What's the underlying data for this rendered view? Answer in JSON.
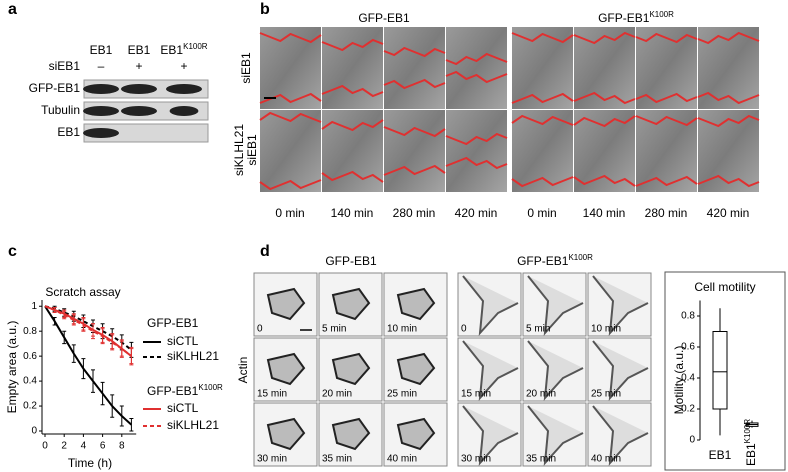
{
  "panels": {
    "a": {
      "label": "a",
      "lanes": [
        "EB1",
        "EB1",
        {
          "base": "EB1",
          "sup": "K100R"
        }
      ],
      "treatment": "siEB1",
      "signs": [
        "–",
        "+",
        "+"
      ],
      "blots": [
        "GFP-EB1",
        "Tubulin",
        "EB1"
      ]
    },
    "b": {
      "label": "b",
      "groups": [
        "GFP-EB1",
        {
          "base": "GFP-EB1",
          "sup": "K100R"
        }
      ],
      "rows": [
        [
          "siEB1"
        ],
        [
          "siKLHL21",
          "siEB1"
        ]
      ],
      "times": [
        [
          "0 min",
          "140 min",
          "280 min",
          "420 min"
        ],
        [
          "0 min",
          "140 min",
          "280 min",
          "420 min"
        ]
      ]
    },
    "c": {
      "label": "c"
    },
    "d": {
      "label": "d",
      "groups": [
        "GFP-EB1",
        {
          "base": "GFP-EB1",
          "sup": "K100R"
        }
      ],
      "stain": "Actin",
      "times": [
        [
          "0",
          "5 min",
          "10 min",
          "15 min",
          "20 min",
          "25 min",
          "30 min",
          "35 min",
          "40 min"
        ],
        [
          "0",
          "5 min",
          "10 min",
          "15 min",
          "20 min",
          "25 min",
          "30 min",
          "35 min",
          "40 min"
        ]
      ]
    }
  },
  "chart_data": [
    {
      "type": "line",
      "title": "Scratch assay",
      "x_label": "Time (h)",
      "y_label": "Empty area (a.u.)",
      "x": [
        0,
        1,
        2,
        3,
        4,
        5,
        6,
        7,
        8,
        9
      ],
      "xlim": [
        0,
        9.5
      ],
      "ylim": [
        0,
        1.05
      ],
      "xticks": [
        0,
        2,
        4,
        6,
        8
      ],
      "yticks": [
        0,
        0.2,
        0.4,
        0.6,
        0.8,
        1
      ],
      "groups": [
        {
          "title": "GFP-EB1",
          "series": [
            {
              "name": "siCTL",
              "color": "#000000",
              "dash": false,
              "values": [
                1,
                0.88,
                0.75,
                0.62,
                0.5,
                0.4,
                0.3,
                0.2,
                0.12,
                0.05
              ],
              "errors": [
                0,
                0.03,
                0.05,
                0.07,
                0.08,
                0.09,
                0.09,
                0.09,
                0.08,
                0.05
              ]
            },
            {
              "name": "siKLHL21",
              "color": "#000000",
              "dash": true,
              "values": [
                1,
                0.98,
                0.95,
                0.92,
                0.88,
                0.84,
                0.8,
                0.76,
                0.71,
                0.65
              ],
              "errors": [
                0,
                0.02,
                0.03,
                0.04,
                0.05,
                0.05,
                0.06,
                0.06,
                0.06,
                0.06
              ]
            }
          ]
        },
        {
          "title": {
            "base": "GFP-EB1",
            "sup": "K100R"
          },
          "series": [
            {
              "name": "siCTL",
              "color": "#e03030",
              "dash": false,
              "values": [
                1,
                0.97,
                0.94,
                0.9,
                0.86,
                0.81,
                0.77,
                0.72,
                0.66,
                0.6
              ],
              "errors": [
                0,
                0.02,
                0.03,
                0.04,
                0.05,
                0.05,
                0.06,
                0.06,
                0.06,
                0.06
              ]
            },
            {
              "name": "siKLHL21",
              "color": "#e03030",
              "dash": true,
              "values": [
                1,
                0.97,
                0.93,
                0.89,
                0.85,
                0.8,
                0.76,
                0.71,
                0.66,
                0.6
              ],
              "errors": [
                0,
                0.02,
                0.03,
                0.04,
                0.05,
                0.06,
                0.06,
                0.06,
                0.07,
                0.07
              ]
            }
          ]
        }
      ]
    },
    {
      "type": "box",
      "title": "Cell motility",
      "y_label": "Motility (a.u.)",
      "categories": [
        "EB1",
        {
          "base": "EB1",
          "sup": "K100R"
        }
      ],
      "ylim": [
        0,
        0.9
      ],
      "yticks": [
        0,
        0.2,
        0.4,
        0.6,
        0.8
      ],
      "color": "#000000",
      "boxes": [
        {
          "min": 0.03,
          "q1": 0.2,
          "median": 0.44,
          "q3": 0.7,
          "max": 0.85
        },
        {
          "min": 0.08,
          "q1": 0.088,
          "median": 0.1,
          "q3": 0.11,
          "max": 0.125
        }
      ]
    }
  ]
}
